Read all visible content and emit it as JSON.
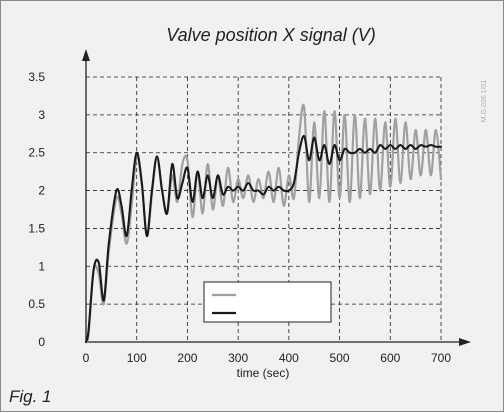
{
  "figure_label": "Fig. 1",
  "watermark": "M.G.026.1/01",
  "chart_data": {
    "type": "line",
    "title": "Valve position X signal (V)",
    "xlabel": "time (sec)",
    "ylabel": "",
    "xlim": [
      0,
      700
    ],
    "ylim": [
      0,
      3.5
    ],
    "x_ticks": [
      0,
      100,
      200,
      300,
      400,
      500,
      600,
      700
    ],
    "y_ticks": [
      0,
      0.5,
      1,
      1.5,
      2,
      2.5,
      3,
      3.5
    ],
    "y_tick_labels": [
      "0",
      "0.5",
      "1",
      "1.5",
      "2",
      "2.5",
      "3",
      "3.5"
    ],
    "grid": true,
    "grid_style": "dashed",
    "legend_entries": [
      "",
      ""
    ],
    "legend_position": "bottom-center",
    "colors": {
      "gray_series": "#a0a0a0",
      "black_series": "#1a1a1a",
      "grid": "#222222",
      "background": "#f1f1f1"
    },
    "series": [
      {
        "color": "#a0a0a0",
        "x": [
          0,
          5,
          15,
          25,
          35,
          45,
          60,
          70,
          80,
          90,
          100,
          110,
          120,
          130,
          140,
          150,
          160,
          170,
          180,
          190,
          200,
          210,
          220,
          230,
          240,
          250,
          260,
          270,
          280,
          290,
          300,
          310,
          320,
          330,
          340,
          350,
          360,
          370,
          380,
          390,
          400,
          410,
          420,
          430,
          440,
          450,
          460,
          470,
          480,
          490,
          500,
          510,
          520,
          530,
          540,
          550,
          560,
          570,
          580,
          590,
          600,
          610,
          620,
          630,
          640,
          650,
          660,
          670,
          680,
          690,
          700
        ],
        "y": [
          0,
          0.1,
          0.95,
          0.9,
          0.5,
          1.2,
          1.9,
          1.7,
          1.3,
          1.8,
          2.45,
          2.1,
          1.4,
          1.95,
          2.45,
          2.0,
          1.7,
          2.2,
          1.85,
          2.35,
          2.4,
          1.65,
          2.25,
          1.7,
          2.35,
          1.75,
          2.2,
          1.8,
          2.3,
          1.85,
          2.15,
          1.9,
          2.2,
          1.85,
          2.15,
          1.9,
          2.25,
          1.85,
          2.3,
          1.8,
          2.2,
          1.9,
          2.7,
          3.1,
          1.85,
          2.9,
          1.9,
          3.05,
          1.85,
          3.05,
          1.9,
          3.0,
          1.85,
          3.0,
          1.9,
          2.95,
          1.95,
          2.95,
          2.0,
          2.9,
          2.05,
          2.95,
          2.1,
          2.9,
          2.15,
          2.8,
          2.2,
          2.8,
          2.2,
          2.8,
          2.15
        ]
      },
      {
        "color": "#1a1a1a",
        "x": [
          0,
          5,
          15,
          25,
          35,
          45,
          60,
          70,
          80,
          90,
          100,
          110,
          120,
          130,
          140,
          150,
          160,
          170,
          180,
          190,
          200,
          210,
          220,
          230,
          240,
          250,
          260,
          270,
          280,
          290,
          300,
          310,
          320,
          330,
          340,
          350,
          360,
          370,
          380,
          390,
          400,
          410,
          420,
          430,
          440,
          450,
          460,
          470,
          480,
          490,
          500,
          510,
          520,
          530,
          540,
          550,
          560,
          570,
          580,
          590,
          600,
          610,
          620,
          630,
          640,
          650,
          660,
          670,
          680,
          690,
          700
        ],
        "y": [
          0,
          0.15,
          0.95,
          1.05,
          0.55,
          1.3,
          2.0,
          1.8,
          1.4,
          2.0,
          2.5,
          2.1,
          1.4,
          2.0,
          2.45,
          2.0,
          1.7,
          2.35,
          1.9,
          2.1,
          2.3,
          1.85,
          2.25,
          1.9,
          2.2,
          1.9,
          2.2,
          1.95,
          2.05,
          2.0,
          2.05,
          2.0,
          2.1,
          2.0,
          2.0,
          1.95,
          2.05,
          2.0,
          2.05,
          2.0,
          2.0,
          2.1,
          2.5,
          2.72,
          2.4,
          2.7,
          2.4,
          2.6,
          2.35,
          2.6,
          2.4,
          2.55,
          2.5,
          2.5,
          2.55,
          2.5,
          2.55,
          2.5,
          2.6,
          2.55,
          2.6,
          2.55,
          2.6,
          2.55,
          2.6,
          2.55,
          2.6,
          2.58,
          2.6,
          2.58,
          2.58
        ]
      }
    ]
  }
}
